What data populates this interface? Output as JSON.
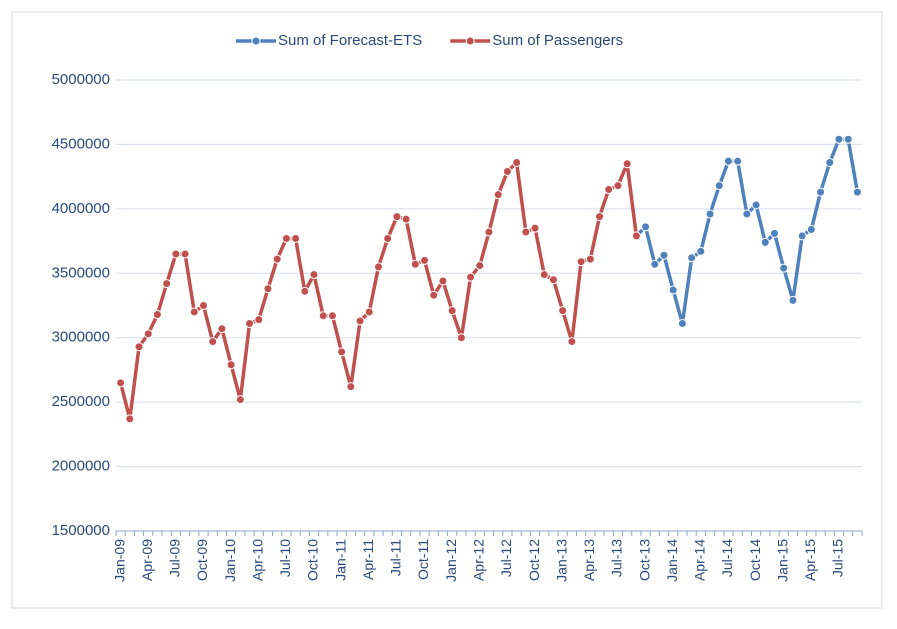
{
  "chart_data": {
    "type": "line",
    "categories": [
      "Jan-09",
      null,
      null,
      "Apr-09",
      null,
      null,
      "Jul-09",
      null,
      null,
      "Oct-09",
      null,
      null,
      "Jan-10",
      null,
      null,
      "Apr-10",
      null,
      null,
      "Jul-10",
      null,
      null,
      "Oct-10",
      null,
      null,
      "Jan-11",
      null,
      null,
      "Apr-11",
      null,
      null,
      "Jul-11",
      null,
      null,
      "Oct-11",
      null,
      null,
      "Jan-12",
      null,
      null,
      "Apr-12",
      null,
      null,
      "Jul-12",
      null,
      null,
      "Oct-12",
      null,
      null,
      "Jan-13",
      null,
      null,
      "Apr-13",
      null,
      null,
      "Jul-13",
      null,
      null,
      "Oct-13",
      null,
      null,
      "Jan-14",
      null,
      null,
      "Apr-14",
      null,
      null,
      "Jul-14",
      null,
      null,
      "Oct-14",
      null,
      null,
      "Jan-15",
      null,
      null,
      "Apr-15",
      null,
      null,
      "Jul-15",
      null,
      null
    ],
    "series": [
      {
        "name": "Sum of Forecast-ETS",
        "color": "#4f81bd",
        "values": [
          null,
          null,
          null,
          null,
          null,
          null,
          null,
          null,
          null,
          null,
          null,
          null,
          null,
          null,
          null,
          null,
          null,
          null,
          null,
          null,
          null,
          null,
          null,
          null,
          null,
          null,
          null,
          null,
          null,
          null,
          null,
          null,
          null,
          null,
          null,
          null,
          null,
          null,
          null,
          null,
          null,
          null,
          null,
          null,
          null,
          null,
          null,
          null,
          null,
          null,
          null,
          null,
          null,
          null,
          null,
          null,
          3790000,
          3860000,
          3570000,
          3640000,
          3370000,
          3110000,
          3620000,
          3670000,
          3960000,
          4180000,
          4370000,
          4370000,
          3960000,
          4030000,
          3740000,
          3810000,
          3540000,
          3290000,
          3790000,
          3840000,
          4130000,
          4360000,
          4540000,
          4540000,
          4130000
        ]
      },
      {
        "name": "Sum of Passengers",
        "color": "#c0504d",
        "values": [
          2650000,
          2370000,
          2930000,
          3030000,
          3180000,
          3420000,
          3650000,
          3650000,
          3200000,
          3250000,
          2970000,
          3070000,
          2790000,
          2520000,
          3110000,
          3140000,
          3380000,
          3610000,
          3770000,
          3770000,
          3360000,
          3490000,
          3170000,
          3170000,
          2890000,
          2620000,
          3130000,
          3200000,
          3550000,
          3770000,
          3940000,
          3920000,
          3570000,
          3600000,
          3330000,
          3440000,
          3210000,
          3000000,
          3470000,
          3560000,
          3820000,
          4110000,
          4290000,
          4360000,
          3820000,
          3850000,
          3490000,
          3450000,
          3210000,
          2970000,
          3590000,
          3610000,
          3940000,
          4150000,
          4180000,
          4350000,
          3790000,
          null,
          null,
          null,
          null,
          null,
          null,
          null,
          null,
          null,
          null,
          null,
          null,
          null,
          null,
          null,
          null,
          null,
          null,
          null,
          null,
          null,
          null,
          null,
          null
        ]
      }
    ],
    "ylim": [
      1500000,
      5000000
    ],
    "yticks": [
      1500000,
      2000000,
      2500000,
      3000000,
      3500000,
      4000000,
      4500000,
      5000000
    ],
    "grid": true,
    "legend": "top"
  }
}
